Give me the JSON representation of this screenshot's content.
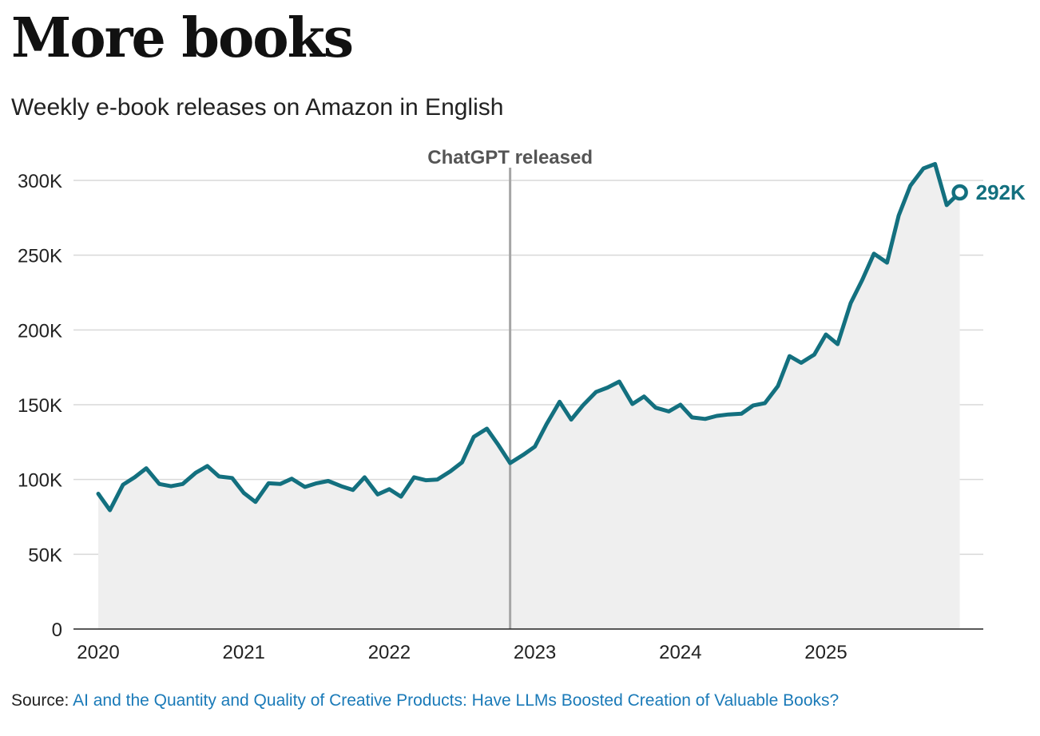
{
  "chart_data": {
    "type": "area",
    "title": "More books",
    "subtitle": "Weekly e-book releases on Amazon in English",
    "ylim": [
      0,
      300000
    ],
    "y_ticks": [
      0,
      50000,
      100000,
      150000,
      200000,
      250000,
      300000
    ],
    "y_tick_labels": [
      "0",
      "50K",
      "100K",
      "150K",
      "200K",
      "250K",
      "300K"
    ],
    "x_ticks": [
      2020,
      2021,
      2022,
      2023,
      2024,
      2025
    ],
    "x_tick_labels": [
      "2020",
      "2021",
      "2022",
      "2023",
      "2024",
      "2025"
    ],
    "grid": true,
    "series": [
      {
        "color": "#13707f",
        "x": [
          2020.0,
          2020.08,
          2020.17,
          2020.25,
          2020.33,
          2020.42,
          2020.5,
          2020.58,
          2020.67,
          2020.75,
          2020.83,
          2020.92,
          2021.0,
          2021.08,
          2021.17,
          2021.25,
          2021.33,
          2021.42,
          2021.5,
          2021.58,
          2021.67,
          2021.75,
          2021.83,
          2021.92,
          2022.0,
          2022.08,
          2022.17,
          2022.25,
          2022.33,
          2022.42,
          2022.5,
          2022.58,
          2022.67,
          2022.75,
          2022.83,
          2022.92,
          2023.0,
          2023.08,
          2023.17,
          2023.25,
          2023.33,
          2023.42,
          2023.5,
          2023.58,
          2023.67,
          2023.75,
          2023.83,
          2023.92,
          2024.0,
          2024.08,
          2024.17,
          2024.25,
          2024.33,
          2024.42,
          2024.5,
          2024.58,
          2024.67,
          2024.75,
          2024.83,
          2024.92,
          2025.0,
          2025.08,
          2025.17,
          2025.25,
          2025.33,
          2025.42,
          2025.5,
          2025.58,
          2025.67,
          2025.75,
          2025.83,
          2025.92
        ],
        "values": [
          90500,
          79500,
          96500,
          101500,
          107500,
          97000,
          95500,
          97000,
          104500,
          109000,
          102000,
          101000,
          91000,
          85000,
          97500,
          97000,
          100500,
          95000,
          97500,
          99000,
          95500,
          93000,
          101500,
          90000,
          93500,
          88500,
          101500,
          99500,
          100000,
          105500,
          111500,
          128500,
          134000,
          123000,
          111000,
          116500,
          122000,
          137000,
          152000,
          140000,
          149500,
          158500,
          161500,
          165500,
          150500,
          155500,
          148000,
          145500,
          150000,
          141500,
          140500,
          142500,
          143500,
          144000,
          149500,
          151000,
          162500,
          182500,
          178000,
          183500,
          197000,
          190500,
          218000,
          233500,
          251000,
          245000,
          276500,
          296500,
          308000,
          311000,
          283500,
          292000
        ]
      }
    ],
    "annotations": [
      {
        "x": 2022.83,
        "label": "ChatGPT released"
      },
      {
        "x": 2025.92,
        "y": 292000,
        "label": "292K"
      }
    ]
  },
  "source": {
    "prefix": "Source: ",
    "link_text": "AI and the Quantity and Quality of Creative Products: Have LLMs Boosted Creation of Valuable Books?"
  }
}
